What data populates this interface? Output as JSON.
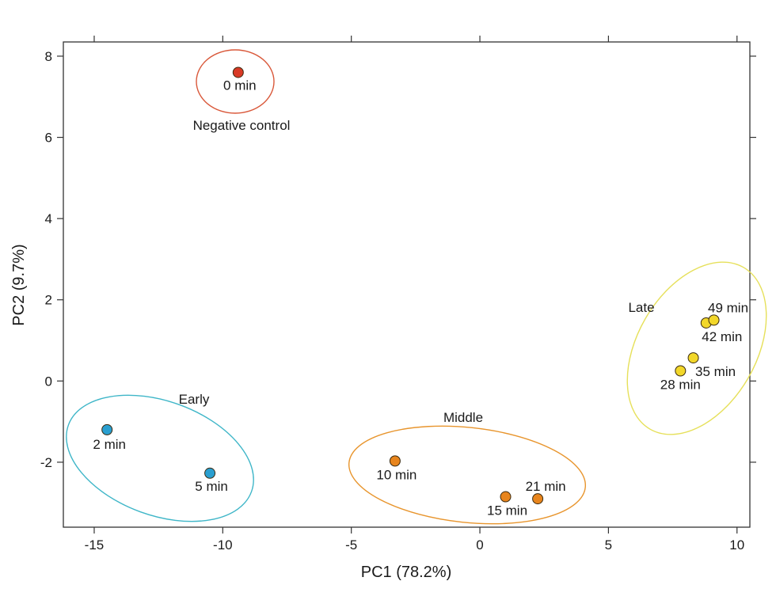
{
  "chart_data": {
    "type": "scatter",
    "xlabel": "PC1 (78.2%)",
    "ylabel": "PC2 (9.7%)",
    "xlim": [
      -16.2,
      10.5
    ],
    "ylim": [
      -3.6,
      8.35
    ],
    "xticks": [
      -15,
      -10,
      -5,
      0,
      5,
      10
    ],
    "yticks": [
      -2,
      0,
      2,
      4,
      6,
      8
    ],
    "grid": false,
    "points": [
      {
        "label": "0 min",
        "x": -9.4,
        "y": 7.6,
        "color": "#d93a26"
      },
      {
        "label": "2 min",
        "x": -14.5,
        "y": -1.2,
        "color": "#2a9fd0"
      },
      {
        "label": "5 min",
        "x": -10.5,
        "y": -2.27,
        "color": "#2a9fd0"
      },
      {
        "label": "10 min",
        "x": -3.3,
        "y": -1.97,
        "color": "#e8851d"
      },
      {
        "label": "15 min",
        "x": 1.0,
        "y": -2.85,
        "color": "#e8851d"
      },
      {
        "label": "21 min",
        "x": 2.25,
        "y": -2.9,
        "color": "#e8851d"
      },
      {
        "label": "28 min",
        "x": 7.8,
        "y": 0.25,
        "color": "#f2d72a"
      },
      {
        "label": "35 min",
        "x": 8.3,
        "y": 0.57,
        "color": "#f2d72a"
      },
      {
        "label": "42 min",
        "x": 8.8,
        "y": 1.43,
        "color": "#f2d72a"
      },
      {
        "label": "49 min",
        "x": 9.1,
        "y": 1.5,
        "color": "#f2d72a"
      }
    ],
    "groups": [
      {
        "name": "Negative control",
        "color": "#d9583a"
      },
      {
        "name": "Early",
        "color": "#3fb6c8"
      },
      {
        "name": "Middle",
        "color": "#e8952d"
      },
      {
        "name": "Late",
        "color": "#e6e05a"
      }
    ]
  }
}
